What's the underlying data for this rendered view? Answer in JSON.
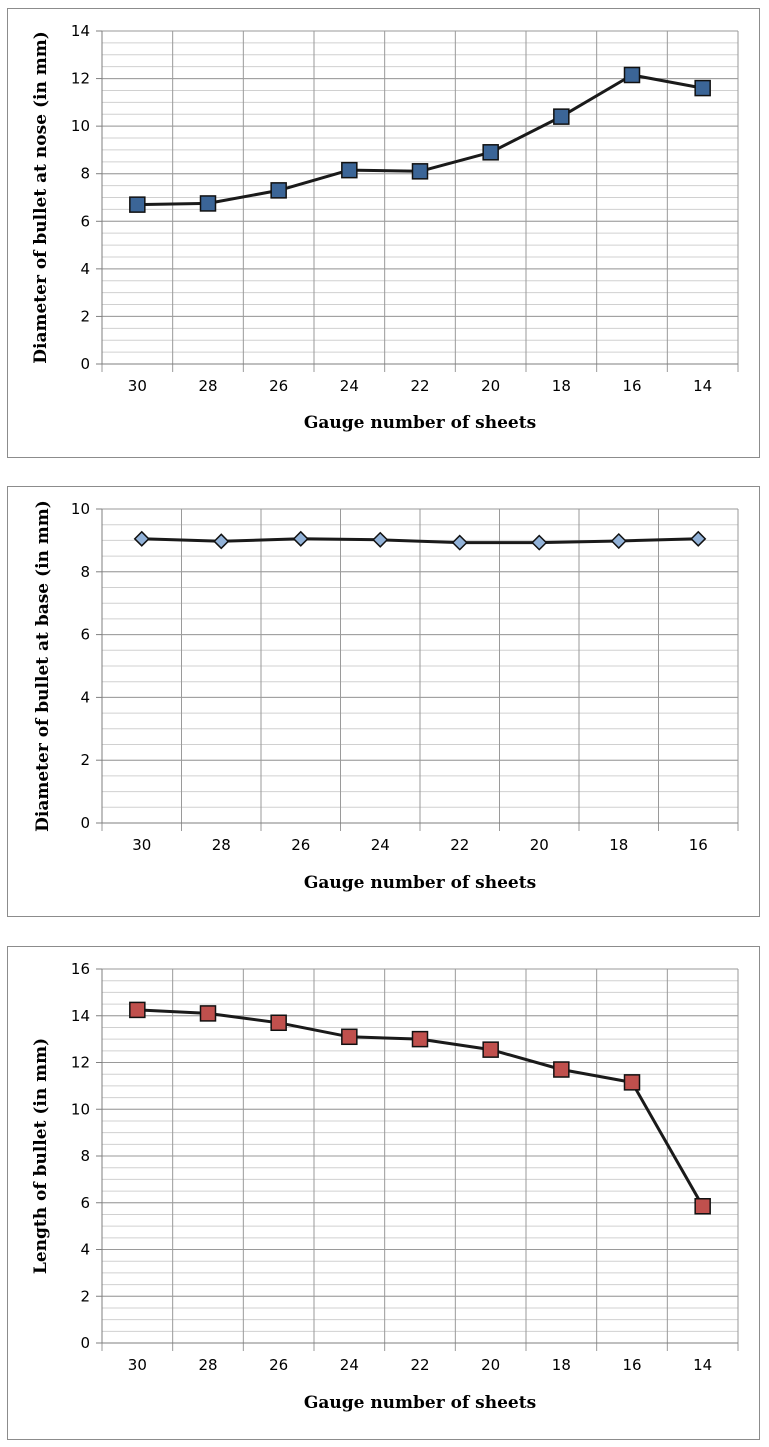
{
  "chart_data": [
    {
      "type": "line",
      "categories": [
        "30",
        "28",
        "26",
        "24",
        "22",
        "20",
        "18",
        "16",
        "14"
      ],
      "series": [
        {
          "values": [
            6.7,
            6.75,
            7.3,
            8.15,
            8.1,
            8.9,
            10.4,
            12.15,
            11.6
          ],
          "marker": "square",
          "marker_color": "#3b6597",
          "line_color": "#1a1a1a"
        }
      ],
      "xlabel": "Gauge number of sheets",
      "ylabel": "Diameter of bullet at nose (in mm)",
      "ylim": [
        0,
        14
      ],
      "y_ticks": [
        "0",
        "2",
        "4",
        "6",
        "8",
        "10",
        "12",
        "14"
      ],
      "grid": true,
      "minor_grid": true
    },
    {
      "type": "line",
      "categories": [
        "30",
        "28",
        "26",
        "24",
        "22",
        "20",
        "18",
        "16"
      ],
      "series": [
        {
          "values": [
            9.05,
            8.97,
            9.05,
            9.02,
            8.93,
            8.93,
            8.98,
            9.05
          ],
          "marker": "diamond",
          "marker_color": "#92b2d8",
          "line_color": "#1a1a1a"
        }
      ],
      "xlabel": "Gauge number of sheets",
      "ylabel": "Diameter of bullet at base (in mm)",
      "ylim": [
        0,
        10
      ],
      "y_ticks": [
        "0",
        "2",
        "4",
        "6",
        "8",
        "10"
      ],
      "grid": true,
      "minor_grid": true
    },
    {
      "type": "line",
      "categories": [
        "30",
        "28",
        "26",
        "24",
        "22",
        "20",
        "18",
        "16",
        "14"
      ],
      "series": [
        {
          "values": [
            14.25,
            14.1,
            13.7,
            13.1,
            13.0,
            12.55,
            11.7,
            11.15,
            5.85
          ],
          "marker": "square",
          "marker_color": "#c0504d",
          "line_color": "#1a1a1a"
        }
      ],
      "xlabel": "Gauge number of sheets",
      "ylabel": "Length of bullet (in mm)",
      "ylim": [
        0,
        16
      ],
      "y_ticks": [
        "0",
        "2",
        "4",
        "6",
        "8",
        "10",
        "12",
        "14",
        "16"
      ],
      "grid": true,
      "minor_grid": true
    }
  ]
}
